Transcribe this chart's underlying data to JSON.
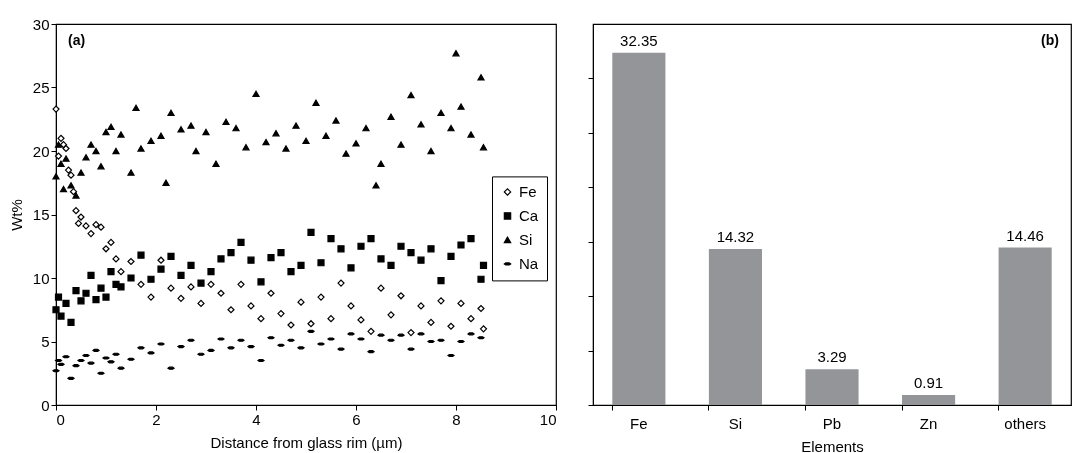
{
  "chart_data": [
    {
      "type": "scatter",
      "xlabel": "Distance from glass rim (µm)",
      "ylabel": "Wt%",
      "annotations": [
        "(a)"
      ],
      "xlim": [
        0,
        10
      ],
      "ylim": [
        0,
        30
      ],
      "xticks": [
        0,
        2,
        4,
        6,
        8,
        10
      ],
      "yticks": [
        0,
        5,
        10,
        15,
        20,
        25,
        30
      ],
      "grid": false,
      "legend": "right",
      "series": [
        {
          "name": "Fe",
          "color": "#000000",
          "marker": "diamond",
          "x": [
            0,
            0.05,
            0.1,
            0.15,
            0.2,
            0.25,
            0.3,
            0.35,
            0.4,
            0.45,
            0.5,
            0.6,
            0.7,
            0.8,
            0.9,
            1,
            1.1,
            1.2,
            1.3,
            1.5,
            1.7,
            1.9,
            2.1,
            2.3,
            2.5,
            2.7,
            2.9,
            3.1,
            3.3,
            3.5,
            3.7,
            3.9,
            4.1,
            4.3,
            4.5,
            4.7,
            4.9,
            5.1,
            5.3,
            5.5,
            5.7,
            5.9,
            6.1,
            6.3,
            6.5,
            6.7,
            6.9,
            7.1,
            7.3,
            7.5,
            7.7,
            7.9,
            8.1,
            8.3,
            8.5,
            8.55
          ],
          "values": [
            23.3,
            19.6,
            21,
            20.5,
            20.2,
            18.5,
            18.1,
            16.8,
            15.3,
            14.3,
            14.8,
            14.1,
            13.5,
            14.2,
            14,
            12.3,
            12.8,
            11.5,
            10.5,
            11.3,
            9.5,
            8.5,
            11.4,
            9.2,
            8.4,
            9.3,
            8,
            9.5,
            8.8,
            7.5,
            9.5,
            7.8,
            6.8,
            8.8,
            7.2,
            6.3,
            8.1,
            6.4,
            8.5,
            6.8,
            9.6,
            7.8,
            6.7,
            5.8,
            9.2,
            7.1,
            8.6,
            5.7,
            7.8,
            6.5,
            8.2,
            6.2,
            8,
            6.8,
            7.6,
            6
          ]
        },
        {
          "name": "Ca",
          "color": "#000000",
          "marker": "square",
          "x": [
            0,
            0.05,
            0.1,
            0.2,
            0.3,
            0.4,
            0.5,
            0.6,
            0.7,
            0.8,
            0.9,
            1,
            1.1,
            1.2,
            1.3,
            1.5,
            1.7,
            1.9,
            2.1,
            2.3,
            2.5,
            2.7,
            2.9,
            3.1,
            3.3,
            3.5,
            3.7,
            3.9,
            4.1,
            4.3,
            4.5,
            4.7,
            4.9,
            5.1,
            5.3,
            5.5,
            5.7,
            5.9,
            6.1,
            6.3,
            6.5,
            6.7,
            6.9,
            7.1,
            7.3,
            7.5,
            7.7,
            7.9,
            8.1,
            8.3,
            8.5,
            8.55
          ],
          "values": [
            7.5,
            8.5,
            7,
            8,
            6.5,
            9,
            8.2,
            8.8,
            10.2,
            8.3,
            9.2,
            8.5,
            10.5,
            9.5,
            9.3,
            10,
            11.8,
            9.9,
            10.7,
            11.7,
            10.2,
            11,
            9.6,
            10.5,
            11.5,
            12,
            12.8,
            11.4,
            9.7,
            11.6,
            12,
            10.5,
            11,
            13.6,
            11.2,
            13.1,
            12.3,
            10.8,
            12.5,
            13.1,
            11.5,
            11,
            12.5,
            12,
            11.4,
            12.3,
            9.8,
            11.7,
            12.6,
            13.1,
            9.9,
            11
          ]
        },
        {
          "name": "Si",
          "color": "#000000",
          "marker": "triangle",
          "x": [
            0,
            0.05,
            0.1,
            0.15,
            0.2,
            0.3,
            0.4,
            0.5,
            0.6,
            0.7,
            0.8,
            0.9,
            1,
            1.1,
            1.2,
            1.3,
            1.5,
            1.6,
            1.7,
            1.9,
            2.1,
            2.2,
            2.3,
            2.5,
            2.7,
            2.8,
            3,
            3.2,
            3.4,
            3.6,
            3.8,
            4,
            4.2,
            4.4,
            4.6,
            4.8,
            5,
            5.2,
            5.4,
            5.6,
            5.8,
            6,
            6.2,
            6.4,
            6.5,
            6.7,
            6.9,
            7.1,
            7.3,
            7.5,
            7.7,
            7.9,
            8,
            8.1,
            8.3,
            8.5,
            8.55
          ],
          "values": [
            18,
            20.5,
            19,
            17,
            19.4,
            17.3,
            16.5,
            18.3,
            19.5,
            20.5,
            20,
            18.8,
            21.5,
            21.9,
            20,
            21.3,
            18.3,
            23.4,
            20.2,
            20.8,
            21.2,
            17.5,
            23,
            21.7,
            22,
            20,
            21.5,
            19,
            22.3,
            21.8,
            20.3,
            24.5,
            20.7,
            21.4,
            20.2,
            22,
            20.8,
            23.8,
            21.2,
            22.4,
            19.8,
            20.6,
            21.8,
            17.3,
            19,
            22.7,
            20.5,
            24.4,
            22.1,
            20,
            23,
            21.8,
            27.7,
            23.5,
            21.3,
            25.8,
            20.3
          ]
        },
        {
          "name": "Na",
          "color": "#000000",
          "x": [
            0,
            0.05,
            0.1,
            0.2,
            0.3,
            0.4,
            0.5,
            0.6,
            0.7,
            0.8,
            0.9,
            1,
            1.1,
            1.2,
            1.3,
            1.5,
            1.7,
            1.9,
            2.1,
            2.3,
            2.5,
            2.7,
            2.9,
            3.1,
            3.3,
            3.5,
            3.7,
            3.9,
            4.1,
            4.3,
            4.5,
            4.7,
            4.9,
            5.1,
            5.3,
            5.5,
            5.7,
            5.9,
            6.1,
            6.3,
            6.5,
            6.7,
            6.9,
            7.1,
            7.3,
            7.5,
            7.7,
            7.9,
            8.1,
            8.3,
            8.5
          ],
          "values": [
            2.7,
            3.5,
            3.2,
            3.8,
            2.1,
            3.1,
            3.5,
            3.9,
            3.3,
            4.3,
            2.5,
            3.7,
            3.4,
            4,
            2.9,
            3.6,
            4.5,
            4.1,
            4.8,
            2.9,
            4.6,
            5.1,
            4,
            4.3,
            5.2,
            4.5,
            5.1,
            4.6,
            3.5,
            5.3,
            4.7,
            5.1,
            4.5,
            5.8,
            4.8,
            5.2,
            4.4,
            5.6,
            5.2,
            4.2,
            5.5,
            5.1,
            5.5,
            4.4,
            5.6,
            5,
            5.1,
            3.9,
            5,
            5.6,
            5.3
          ]
        }
      ]
    },
    {
      "type": "bar",
      "xlabel": "Elements",
      "annotations": [
        "(b)"
      ],
      "categories": [
        "Fe",
        "Si",
        "Pb",
        "Zn",
        "others"
      ],
      "values": [
        32.35,
        14.32,
        3.29,
        0.91,
        14.46
      ],
      "color": "#939598",
      "data_labels": true,
      "ylim": [
        0,
        35
      ],
      "yticks": [
        {
          "value": 0,
          "label": null
        },
        {
          "value": 5,
          "label": null
        },
        {
          "value": 10,
          "label": null
        },
        {
          "value": 15,
          "label": null
        },
        {
          "value": 20,
          "label": null
        },
        {
          "value": 25,
          "label": null
        },
        {
          "value": 30,
          "label": null
        }
      ],
      "tick_labels": "x",
      "grid": false
    }
  ]
}
